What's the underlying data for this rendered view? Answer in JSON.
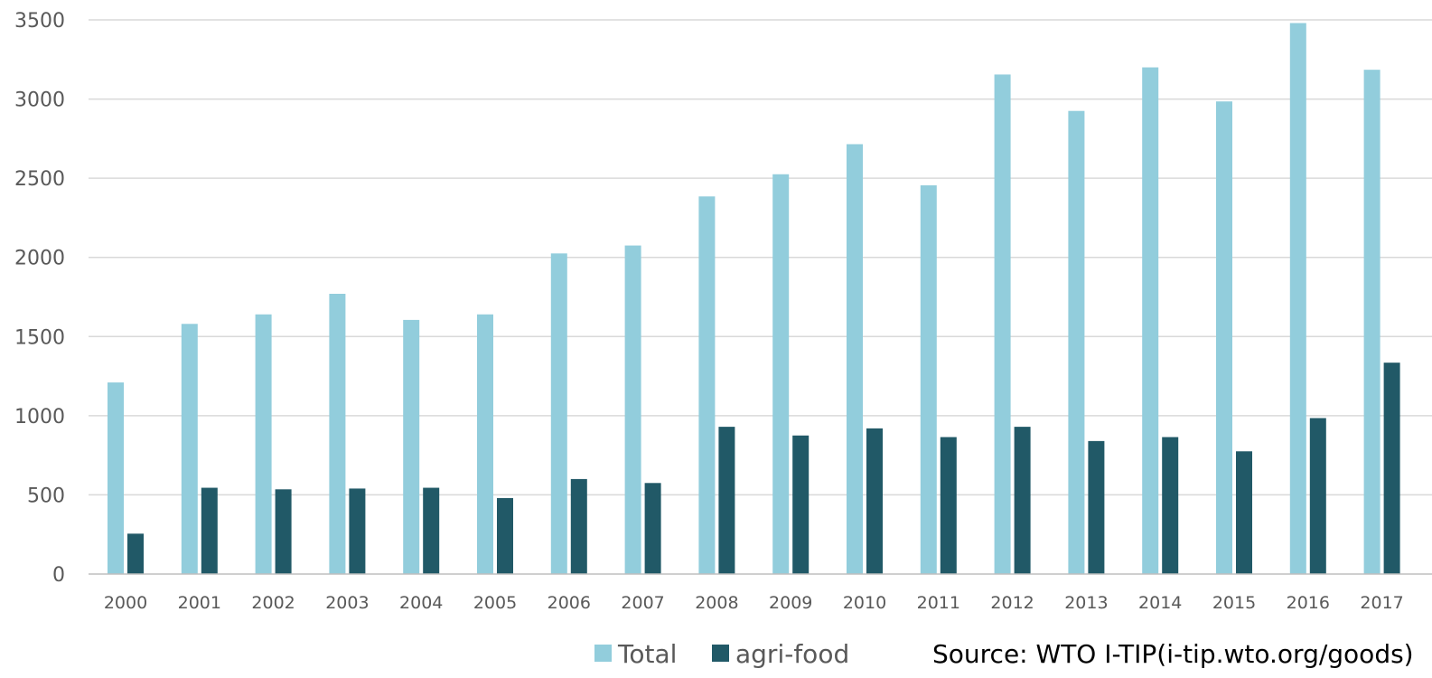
{
  "chart_data": {
    "type": "bar",
    "categories": [
      "2000",
      "2001",
      "2002",
      "2003",
      "2004",
      "2005",
      "2006",
      "2007",
      "2008",
      "2009",
      "2010",
      "2011",
      "2012",
      "2013",
      "2014",
      "2015",
      "2016",
      "2017"
    ],
    "series": [
      {
        "name": "Total",
        "color": "#92cddc",
        "values": [
          1210,
          1580,
          1640,
          1770,
          1605,
          1640,
          2025,
          2075,
          2385,
          2525,
          2715,
          2455,
          3155,
          2925,
          3200,
          2985,
          3480,
          3185
        ]
      },
      {
        "name": "agri-food",
        "color": "#215967",
        "values": [
          255,
          545,
          535,
          540,
          545,
          480,
          600,
          575,
          930,
          875,
          920,
          865,
          930,
          840,
          865,
          775,
          985,
          1335
        ]
      }
    ],
    "ylim": [
      0,
      3500
    ],
    "yticks": [
      0,
      500,
      1000,
      1500,
      2000,
      2500,
      3000,
      3500
    ],
    "grid": true,
    "legend_position": "bottom",
    "source": "Source: WTO I-TIP(i-tip.wto.org/goods)"
  }
}
